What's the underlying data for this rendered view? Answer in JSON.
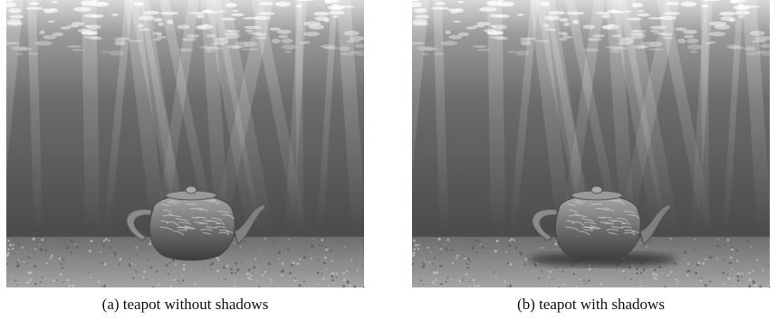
{
  "figure": {
    "panels": [
      {
        "caption": "(a) teapot without shadows"
      },
      {
        "caption": "(b) teapot with shadows"
      }
    ]
  }
}
